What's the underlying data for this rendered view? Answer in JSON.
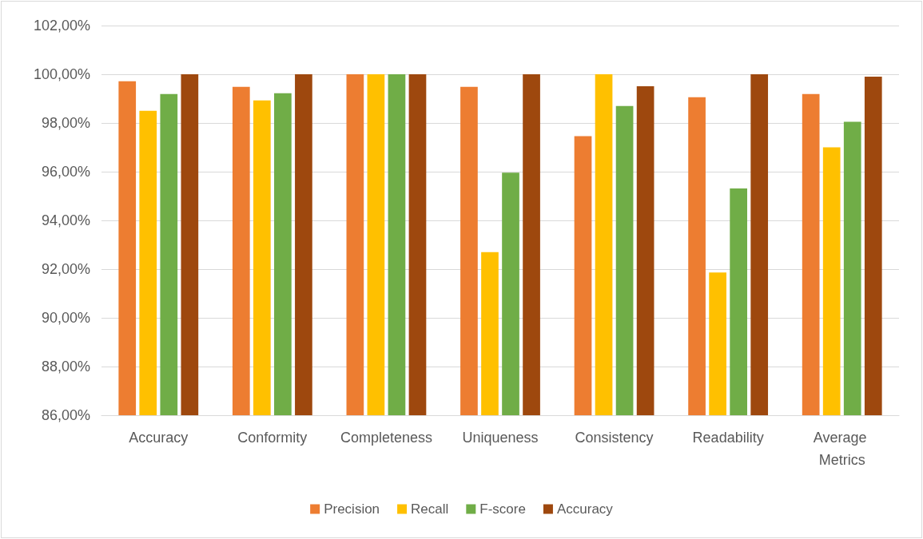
{
  "chart_data": {
    "type": "bar",
    "categories": [
      "Accuracy",
      "Conformity",
      "Completeness",
      "Uniqueness",
      "Consistency",
      "Readability",
      "Average Metrics"
    ],
    "series": [
      {
        "name": "Precision",
        "color": "#ed7d31",
        "values": [
          99.71,
          99.48,
          100,
          99.48,
          97.46,
          99.06,
          99.19
        ]
      },
      {
        "name": "Recall",
        "color": "#ffc000",
        "values": [
          98.5,
          98.93,
          100,
          92.7,
          100,
          91.86,
          97.0
        ]
      },
      {
        "name": "F-score",
        "color": "#70ad47",
        "values": [
          99.19,
          99.22,
          100,
          95.96,
          98.7,
          95.31,
          98.05
        ]
      },
      {
        "name": "Accuracy",
        "color": "#9e480e",
        "values": [
          100,
          100,
          100,
          100,
          99.51,
          100,
          99.9
        ]
      }
    ],
    "ylim": [
      86,
      102
    ],
    "yticks": [
      {
        "value": 86,
        "label": "86,00%"
      },
      {
        "value": 88,
        "label": "88,00%"
      },
      {
        "value": 90,
        "label": "90,00%"
      },
      {
        "value": 92,
        "label": "92,00%"
      },
      {
        "value": 94,
        "label": "94,00%"
      },
      {
        "value": 96,
        "label": "96,00%"
      },
      {
        "value": 98,
        "label": "98,00%"
      },
      {
        "value": 100,
        "label": "100,00%"
      },
      {
        "value": 102,
        "label": "102,00%"
      }
    ],
    "grid": "y",
    "legend": "bottom"
  }
}
